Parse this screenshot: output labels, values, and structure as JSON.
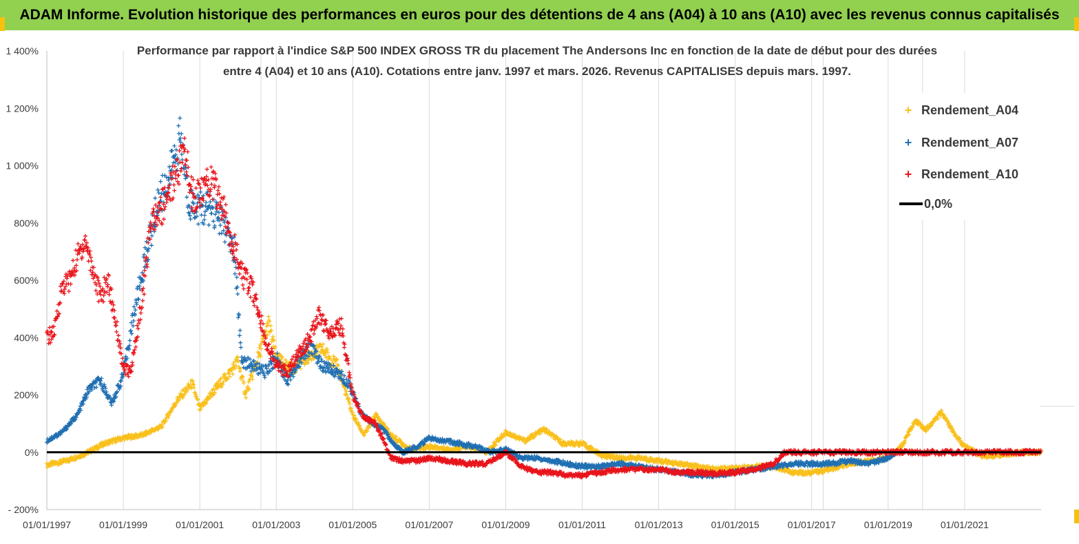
{
  "banner": {
    "title": "ADAM Informe. Evolution historique des performances en euros pour des détentions de 4 ans (A04) à 10 ans (A10) avec les revenus connus capitalisés"
  },
  "chart_data": {
    "type": "scatter",
    "title_line1": "Performance par rapport à l'indice S&P 500 INDEX GROSS TR  du placement The Andersons Inc en fonction de la date de début pour des durées",
    "title_line2": "entre 4 (A04) et 10 ans (A10). Cotations entre janv. 1997 et mars. 2026. Revenus CAPITALISES depuis mars. 1997.",
    "ylim": [
      -200,
      1400
    ],
    "y_ticks": [
      "- 200%",
      "0%",
      "200%",
      "400%",
      "600%",
      "800%",
      "1 000%",
      "1 200%",
      "1 400%"
    ],
    "y_tick_values": [
      -200,
      0,
      200,
      400,
      600,
      800,
      1000,
      1200,
      1400
    ],
    "x_range": [
      "1997-01-01",
      "2023-01-01"
    ],
    "x_ticks": [
      "01/01/1997",
      "01/01/1999",
      "01/01/2001",
      "01/01/2003",
      "01/01/2005",
      "01/01/2007",
      "01/01/2009",
      "01/01/2011",
      "01/01/2013",
      "01/01/2015",
      "01/01/2017",
      "01/01/2019",
      "01/01/2021"
    ],
    "x_tick_years": [
      1997,
      1999,
      2001,
      2003,
      2005,
      2007,
      2009,
      2011,
      2013,
      2015,
      2017,
      2019,
      2021
    ],
    "grid": "vertical",
    "legend_position": "top-right",
    "series": [
      {
        "name": "Rendement_A04",
        "color": "#f9c01c",
        "marker": "+",
        "points": [
          [
            1997.0,
            -45
          ],
          [
            1997.5,
            -30
          ],
          [
            1998.0,
            -5
          ],
          [
            1998.5,
            30
          ],
          [
            1999.0,
            50
          ],
          [
            1999.5,
            60
          ],
          [
            2000.0,
            90
          ],
          [
            2000.4,
            180
          ],
          [
            2000.8,
            240
          ],
          [
            2001.0,
            150
          ],
          [
            2001.4,
            220
          ],
          [
            2001.8,
            280
          ],
          [
            2002.0,
            320
          ],
          [
            2002.2,
            200
          ],
          [
            2002.5,
            320
          ],
          [
            2002.8,
            450
          ],
          [
            2003.0,
            330
          ],
          [
            2003.4,
            290
          ],
          [
            2003.8,
            330
          ],
          [
            2004.2,
            360
          ],
          [
            2004.6,
            300
          ],
          [
            2005.0,
            130
          ],
          [
            2005.3,
            60
          ],
          [
            2005.6,
            130
          ],
          [
            2006.0,
            60
          ],
          [
            2006.5,
            10
          ],
          [
            2007.0,
            20
          ],
          [
            2007.5,
            10
          ],
          [
            2008.0,
            20
          ],
          [
            2008.5,
            0
          ],
          [
            2009.0,
            70
          ],
          [
            2009.5,
            40
          ],
          [
            2010.0,
            80
          ],
          [
            2010.5,
            30
          ],
          [
            2011.0,
            30
          ],
          [
            2011.5,
            -10
          ],
          [
            2012.0,
            -20
          ],
          [
            2012.5,
            -20
          ],
          [
            2013.0,
            -30
          ],
          [
            2013.5,
            -40
          ],
          [
            2014.0,
            -50
          ],
          [
            2014.5,
            -60
          ],
          [
            2015.0,
            -55
          ],
          [
            2015.5,
            -50
          ],
          [
            2016.0,
            -50
          ],
          [
            2016.5,
            -70
          ],
          [
            2017.0,
            -70
          ],
          [
            2017.5,
            -60
          ],
          [
            2018.0,
            -40
          ],
          [
            2018.5,
            -30
          ],
          [
            2019.0,
            -20
          ],
          [
            2019.4,
            30
          ],
          [
            2019.7,
            110
          ],
          [
            2020.0,
            80
          ],
          [
            2020.4,
            140
          ],
          [
            2020.7,
            70
          ],
          [
            2021.0,
            20
          ],
          [
            2021.5,
            -15
          ],
          [
            2022.0,
            -10
          ],
          [
            2022.5,
            0
          ],
          [
            2023.0,
            0
          ]
        ]
      },
      {
        "name": "Rendement_A07",
        "color": "#1f6fb2",
        "marker": "+",
        "points": [
          [
            1997.0,
            40
          ],
          [
            1997.4,
            70
          ],
          [
            1997.8,
            130
          ],
          [
            1998.1,
            220
          ],
          [
            1998.4,
            250
          ],
          [
            1998.7,
            170
          ],
          [
            1999.0,
            270
          ],
          [
            1999.3,
            500
          ],
          [
            1999.6,
            690
          ],
          [
            1999.9,
            870
          ],
          [
            2000.2,
            960
          ],
          [
            2000.5,
            1100
          ],
          [
            2000.7,
            880
          ],
          [
            2001.0,
            850
          ],
          [
            2001.3,
            850
          ],
          [
            2001.6,
            800
          ],
          [
            2001.9,
            700
          ],
          [
            2002.1,
            320
          ],
          [
            2002.4,
            300
          ],
          [
            2002.7,
            280
          ],
          [
            2003.0,
            330
          ],
          [
            2003.3,
            250
          ],
          [
            2003.6,
            320
          ],
          [
            2003.9,
            370
          ],
          [
            2004.2,
            300
          ],
          [
            2004.6,
            280
          ],
          [
            2004.9,
            240
          ],
          [
            2005.2,
            140
          ],
          [
            2005.5,
            100
          ],
          [
            2005.8,
            80
          ],
          [
            2006.0,
            40
          ],
          [
            2006.3,
            0
          ],
          [
            2006.7,
            20
          ],
          [
            2007.0,
            50
          ],
          [
            2007.4,
            40
          ],
          [
            2007.8,
            30
          ],
          [
            2008.2,
            20
          ],
          [
            2008.6,
            0
          ],
          [
            2009.0,
            10
          ],
          [
            2009.4,
            -20
          ],
          [
            2009.8,
            -20
          ],
          [
            2010.2,
            -30
          ],
          [
            2010.6,
            -40
          ],
          [
            2011.0,
            -50
          ],
          [
            2011.5,
            -50
          ],
          [
            2012.0,
            -40
          ],
          [
            2012.5,
            -50
          ],
          [
            2013.0,
            -60
          ],
          [
            2013.5,
            -70
          ],
          [
            2014.0,
            -80
          ],
          [
            2014.5,
            -80
          ],
          [
            2015.0,
            -70
          ],
          [
            2015.5,
            -60
          ],
          [
            2016.0,
            -50
          ],
          [
            2016.5,
            -40
          ],
          [
            2017.0,
            -40
          ],
          [
            2017.5,
            -40
          ],
          [
            2018.0,
            -30
          ],
          [
            2018.5,
            -40
          ],
          [
            2019.0,
            -20
          ],
          [
            2019.2,
            0
          ]
        ]
      },
      {
        "name": "Rendement_A10",
        "color": "#e8141b",
        "marker": "+",
        "points": [
          [
            1997.0,
            400
          ],
          [
            1997.2,
            420
          ],
          [
            1997.4,
            580
          ],
          [
            1997.6,
            600
          ],
          [
            1997.8,
            680
          ],
          [
            1998.0,
            740
          ],
          [
            1998.2,
            640
          ],
          [
            1998.4,
            540
          ],
          [
            1998.6,
            600
          ],
          [
            1998.8,
            460
          ],
          [
            1999.0,
            290
          ],
          [
            1999.2,
            280
          ],
          [
            1999.5,
            540
          ],
          [
            1999.7,
            780
          ],
          [
            2000.0,
            850
          ],
          [
            2000.3,
            950
          ],
          [
            2000.6,
            1050
          ],
          [
            2000.8,
            900
          ],
          [
            2001.0,
            900
          ],
          [
            2001.3,
            950
          ],
          [
            2001.6,
            850
          ],
          [
            2001.9,
            720
          ],
          [
            2002.1,
            620
          ],
          [
            2002.4,
            560
          ],
          [
            2002.7,
            400
          ],
          [
            2003.0,
            300
          ],
          [
            2003.3,
            280
          ],
          [
            2003.6,
            350
          ],
          [
            2003.9,
            400
          ],
          [
            2004.1,
            480
          ],
          [
            2004.4,
            420
          ],
          [
            2004.7,
            440
          ],
          [
            2005.0,
            200
          ],
          [
            2005.3,
            120
          ],
          [
            2005.6,
            100
          ],
          [
            2006.0,
            -20
          ],
          [
            2006.3,
            -30
          ],
          [
            2006.7,
            -30
          ],
          [
            2007.0,
            -20
          ],
          [
            2007.5,
            -30
          ],
          [
            2008.0,
            -40
          ],
          [
            2008.5,
            -40
          ],
          [
            2009.0,
            0
          ],
          [
            2009.4,
            -50
          ],
          [
            2009.8,
            -70
          ],
          [
            2010.2,
            -70
          ],
          [
            2010.6,
            -80
          ],
          [
            2011.0,
            -80
          ],
          [
            2011.5,
            -70
          ],
          [
            2012.0,
            -60
          ],
          [
            2012.5,
            -60
          ],
          [
            2013.0,
            -60
          ],
          [
            2013.5,
            -70
          ],
          [
            2014.0,
            -70
          ],
          [
            2014.5,
            -75
          ],
          [
            2015.0,
            -70
          ],
          [
            2015.5,
            -60
          ],
          [
            2016.0,
            -40
          ],
          [
            2016.3,
            0
          ],
          [
            2017.0,
            0
          ],
          [
            2018.0,
            0
          ],
          [
            2019.0,
            0
          ],
          [
            2020.0,
            0
          ],
          [
            2021.0,
            0
          ],
          [
            2022.0,
            0
          ],
          [
            2023.0,
            0
          ]
        ]
      },
      {
        "name": "0,0%",
        "color": "#000000",
        "type": "line",
        "points": [
          [
            1997.0,
            0
          ],
          [
            2023.0,
            0
          ]
        ]
      }
    ]
  }
}
